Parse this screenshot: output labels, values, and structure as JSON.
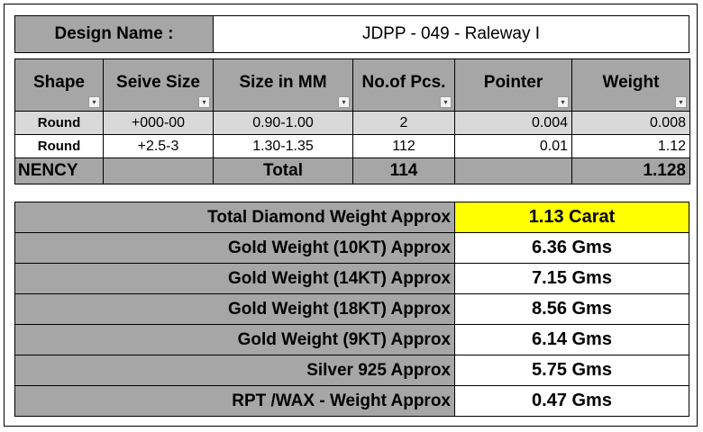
{
  "design": {
    "label": "Design Name :",
    "value": "JDPP - 049 - Raleway I"
  },
  "stones": {
    "headers": [
      "Shape",
      "Seive Size",
      "Size in MM",
      "No.of Pcs.",
      "Pointer",
      "Weight"
    ],
    "rows": [
      [
        "Round",
        "+000-00",
        "0.90-1.00",
        "2",
        "0.004",
        "0.008"
      ],
      [
        "Round",
        "+2.5-3",
        "1.30-1.35",
        "112",
        "0.01",
        "1.12"
      ]
    ],
    "total": {
      "name": "NENCY",
      "label": "Total",
      "pcs": "114",
      "weight": "1.128"
    }
  },
  "summary": [
    {
      "label": "Total Diamond Weight Approx",
      "value": "1.13 Carat"
    },
    {
      "label": "Gold Weight (10KT) Approx",
      "value": "6.36 Gms"
    },
    {
      "label": "Gold Weight (14KT) Approx",
      "value": "7.15 Gms"
    },
    {
      "label": "Gold Weight (18KT) Approx",
      "value": "8.56 Gms"
    },
    {
      "label": "Gold Weight (9KT) Approx",
      "value": "6.14 Gms"
    },
    {
      "label": "Silver 925 Approx",
      "value": "5.75 Gms"
    },
    {
      "label": "RPT /WAX - Weight Approx",
      "value": "0.47 Gms"
    }
  ],
  "colors": {
    "header_gray": "#a6a6a6",
    "row_gray": "#d9d9d9",
    "highlight": "#ffff00"
  },
  "icons": [
    "filter-dropdown-icon",
    "filter-active-icon"
  ]
}
